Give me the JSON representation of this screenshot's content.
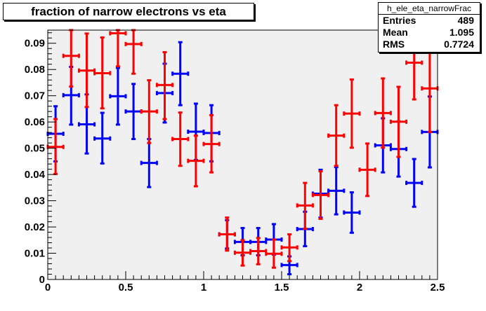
{
  "title": "fraction of narrow electrons vs eta",
  "stats": {
    "name": "h_ele_eta_narrowFrac",
    "rows": [
      {
        "label": "Entries",
        "value": "489"
      },
      {
        "label": "Mean",
        "value": "1.095"
      },
      {
        "label": "RMS",
        "value": "0.7724"
      }
    ]
  },
  "chart_data": {
    "type": "scatter",
    "title": "fraction of narrow electrons vs eta",
    "xlim": [
      0,
      2.5
    ],
    "ylim": [
      0,
      0.095
    ],
    "x_ticks": [
      "0",
      "0.5",
      "1",
      "1.5",
      "2",
      "2.5"
    ],
    "x_tick_values": [
      0,
      0.5,
      1,
      1.5,
      2,
      2.5
    ],
    "y_ticks": [
      "0",
      "0.01",
      "0.02",
      "0.03",
      "0.04",
      "0.05",
      "0.06",
      "0.07",
      "0.08",
      "0.09"
    ],
    "y_tick_values": [
      0,
      0.01,
      0.02,
      0.03,
      0.04,
      0.05,
      0.06,
      0.07,
      0.08,
      0.09
    ],
    "bin_width": 0.1,
    "plot_background": "#f0f0f0",
    "series": [
      {
        "color": "#0000ff",
        "points": [
          {
            "x": 0.05,
            "y": 0.0555,
            "ylo": 0.045,
            "yhi": 0.066
          },
          {
            "x": 0.15,
            "y": 0.0702,
            "ylo": 0.059,
            "yhi": 0.081
          },
          {
            "x": 0.25,
            "y": 0.0591,
            "ylo": 0.048,
            "yhi": 0.0705
          },
          {
            "x": 0.35,
            "y": 0.0537,
            "ylo": 0.0442,
            "yhi": 0.0635
          },
          {
            "x": 0.45,
            "y": 0.0698,
            "ylo": 0.059,
            "yhi": 0.0806
          },
          {
            "x": 0.55,
            "y": 0.064,
            "ylo": 0.0535,
            "yhi": 0.0745
          },
          {
            "x": 0.65,
            "y": 0.0444,
            "ylo": 0.0352,
            "yhi": 0.0535
          },
          {
            "x": 0.75,
            "y": 0.071,
            "ylo": 0.0598,
            "yhi": 0.0822
          },
          {
            "x": 0.85,
            "y": 0.0784,
            "ylo": 0.0664,
            "yhi": 0.0904
          },
          {
            "x": 0.95,
            "y": 0.0563,
            "ylo": 0.0455,
            "yhi": 0.067
          },
          {
            "x": 1.05,
            "y": 0.0558,
            "ylo": 0.045,
            "yhi": 0.0664
          },
          {
            "x": 1.15,
            "y": 0.0172,
            "ylo": 0.0118,
            "yhi": 0.0226
          },
          {
            "x": 1.25,
            "y": 0.0143,
            "ylo": 0.0092,
            "yhi": 0.0196
          },
          {
            "x": 1.35,
            "y": 0.0143,
            "ylo": 0.0092,
            "yhi": 0.0196
          },
          {
            "x": 1.45,
            "y": 0.0152,
            "ylo": 0.0095,
            "yhi": 0.0211
          },
          {
            "x": 1.55,
            "y": 0.0055,
            "ylo": 0.002,
            "yhi": 0.0088
          },
          {
            "x": 1.65,
            "y": 0.0192,
            "ylo": 0.0127,
            "yhi": 0.0258
          },
          {
            "x": 1.75,
            "y": 0.0327,
            "ylo": 0.0236,
            "yhi": 0.0418
          },
          {
            "x": 1.85,
            "y": 0.0338,
            "ylo": 0.0248,
            "yhi": 0.0428
          },
          {
            "x": 1.95,
            "y": 0.0255,
            "ylo": 0.0178,
            "yhi": 0.0332
          },
          {
            "x": 2.15,
            "y": 0.0511,
            "ylo": 0.0408,
            "yhi": 0.0614
          },
          {
            "x": 2.25,
            "y": 0.0497,
            "ylo": 0.0392,
            "yhi": 0.0602
          },
          {
            "x": 2.35,
            "y": 0.0368,
            "ylo": 0.0277,
            "yhi": 0.0459
          },
          {
            "x": 2.45,
            "y": 0.0562,
            "ylo": 0.0427,
            "yhi": 0.0697
          }
        ]
      },
      {
        "color": "#ff0000",
        "points": [
          {
            "x": 0.05,
            "y": 0.0505,
            "ylo": 0.0402,
            "yhi": 0.0611
          },
          {
            "x": 0.15,
            "y": 0.0852,
            "ylo": 0.0735,
            "yhi": 0.0956
          },
          {
            "x": 0.25,
            "y": 0.0796,
            "ylo": 0.0657,
            "yhi": 0.0937
          },
          {
            "x": 0.35,
            "y": 0.0786,
            "ylo": 0.0652,
            "yhi": 0.0922
          },
          {
            "x": 0.45,
            "y": 0.0938,
            "ylo": 0.0812,
            "yhi": 0.0956
          },
          {
            "x": 0.55,
            "y": 0.0897,
            "ylo": 0.0784,
            "yhi": 0.0956
          },
          {
            "x": 0.65,
            "y": 0.064,
            "ylo": 0.052,
            "yhi": 0.0759
          },
          {
            "x": 0.75,
            "y": 0.0741,
            "ylo": 0.0611,
            "yhi": 0.0866
          },
          {
            "x": 0.85,
            "y": 0.0535,
            "ylo": 0.0433,
            "yhi": 0.0636
          },
          {
            "x": 0.95,
            "y": 0.0452,
            "ylo": 0.0355,
            "yhi": 0.0548
          },
          {
            "x": 1.05,
            "y": 0.0516,
            "ylo": 0.0408,
            "yhi": 0.0626
          },
          {
            "x": 1.15,
            "y": 0.0172,
            "ylo": 0.011,
            "yhi": 0.0236
          },
          {
            "x": 1.25,
            "y": 0.0102,
            "ylo": 0.0053,
            "yhi": 0.015
          },
          {
            "x": 1.35,
            "y": 0.0108,
            "ylo": 0.0058,
            "yhi": 0.0158
          },
          {
            "x": 1.45,
            "y": 0.0098,
            "ylo": 0.0045,
            "yhi": 0.0152
          },
          {
            "x": 1.55,
            "y": 0.0122,
            "ylo": 0.007,
            "yhi": 0.0172
          },
          {
            "x": 1.65,
            "y": 0.0282,
            "ylo": 0.0193,
            "yhi": 0.0368
          },
          {
            "x": 1.75,
            "y": 0.0322,
            "ylo": 0.0231,
            "yhi": 0.0412
          },
          {
            "x": 1.85,
            "y": 0.0548,
            "ylo": 0.0433,
            "yhi": 0.0664
          },
          {
            "x": 1.95,
            "y": 0.0632,
            "ylo": 0.0502,
            "yhi": 0.0762
          },
          {
            "x": 2.05,
            "y": 0.0418,
            "ylo": 0.0318,
            "yhi": 0.0518
          },
          {
            "x": 2.15,
            "y": 0.0634,
            "ylo": 0.0502,
            "yhi": 0.0766
          },
          {
            "x": 2.25,
            "y": 0.0601,
            "ylo": 0.0467,
            "yhi": 0.0734
          },
          {
            "x": 2.35,
            "y": 0.0826,
            "ylo": 0.0686,
            "yhi": 0.0945
          },
          {
            "x": 2.45,
            "y": 0.0728,
            "ylo": 0.0562,
            "yhi": 0.0895
          }
        ]
      }
    ]
  }
}
